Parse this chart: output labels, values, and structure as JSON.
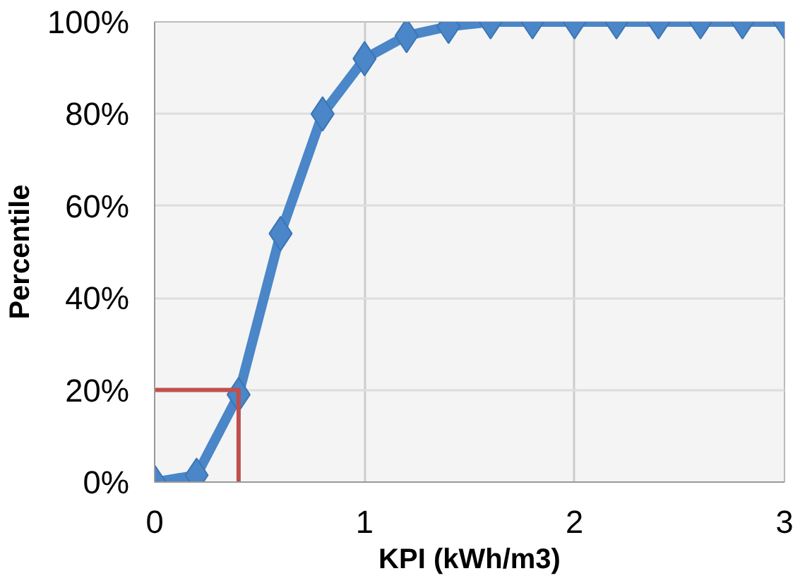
{
  "chart_data": {
    "type": "line",
    "xlabel": "KPI (kWh/m3)",
    "ylabel": "Percentile",
    "xlim": [
      0,
      3
    ],
    "xticks": [
      0,
      1,
      2,
      3
    ],
    "ylim": [
      0,
      100
    ],
    "yticks": [
      {
        "value": 0,
        "label": "0%"
      },
      {
        "value": 20,
        "label": "20%"
      },
      {
        "value": 40,
        "label": "40%"
      },
      {
        "value": 60,
        "label": "60%"
      },
      {
        "value": 80,
        "label": "80%"
      },
      {
        "value": 100,
        "label": "100%"
      }
    ],
    "grid": true,
    "marker": "diamond",
    "line_style": "solid",
    "series": [
      {
        "color": "#4a86c8",
        "x": [
          0,
          0.2,
          0.4,
          0.6,
          0.8,
          1.0,
          1.2,
          1.4,
          1.6,
          1.8,
          2.0,
          2.2,
          2.4,
          2.6,
          2.8,
          3.0
        ],
        "values": [
          0,
          1.5,
          19,
          54,
          80,
          92,
          97,
          99,
          100,
          100,
          100,
          100,
          100,
          100,
          100,
          100
        ]
      },
      {
        "color": "#c0504d",
        "marker": "none",
        "x": [
          0,
          0.4,
          0.4
        ],
        "values": [
          20,
          20,
          0
        ]
      }
    ]
  }
}
